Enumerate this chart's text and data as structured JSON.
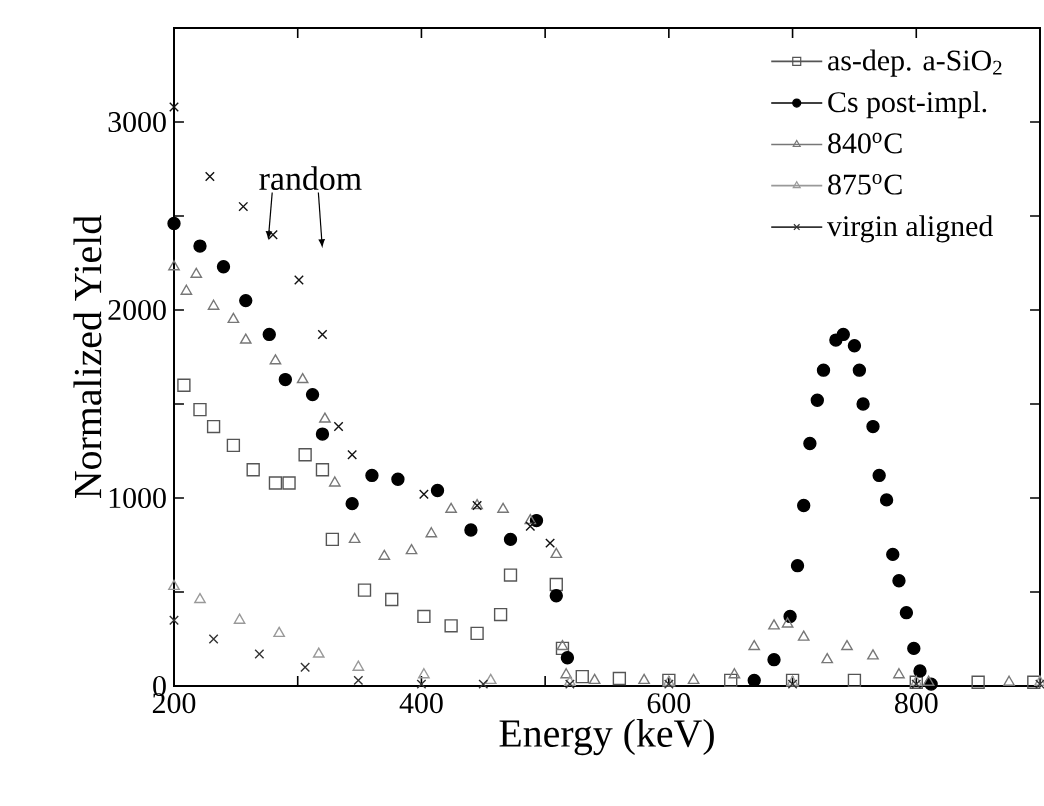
{
  "chart_data": {
    "type": "scatter",
    "xlabel": "Energy (keV)",
    "ylabel": "Normalized Yield",
    "xlim": [
      200,
      900
    ],
    "ylim": [
      0,
      3500
    ],
    "xticks": [
      200,
      {
        "value": 300,
        "label": null
      },
      400,
      {
        "value": 500,
        "label": null
      },
      600,
      {
        "value": 700,
        "label": null
      },
      800
    ],
    "yticks": [
      0,
      {
        "value": 500,
        "label": null
      },
      1000,
      {
        "value": 1500,
        "label": null
      },
      2000,
      {
        "value": 2500,
        "label": null
      },
      3000
    ],
    "legend": "top right",
    "grid": false,
    "annotations": [
      "random"
    ],
    "series": [
      {
        "name": "as-dep. a-SiO$_{2}$",
        "color": "#555555",
        "marker": "square",
        "x": [
          208,
          221,
          232,
          248,
          264,
          282,
          293,
          306,
          320,
          328,
          354,
          376,
          402,
          424,
          445,
          464,
          472,
          509,
          514,
          530,
          560,
          600,
          650,
          700,
          750,
          800,
          850,
          895
        ],
        "values": [
          1600,
          1470,
          1380,
          1280,
          1150,
          1080,
          1080,
          1230,
          1150,
          780,
          510,
          460,
          370,
          320,
          280,
          380,
          590,
          540,
          200,
          50,
          40,
          30,
          30,
          30,
          30,
          20,
          20,
          20
        ]
      },
      {
        "name": "Cs post-impl.",
        "color": "#000000",
        "marker": "circle",
        "x": [
          200,
          221,
          240,
          258,
          277,
          290,
          312,
          320,
          344,
          360,
          381,
          413,
          440,
          472,
          493,
          509,
          518,
          669,
          685,
          698,
          704,
          709,
          714,
          720,
          725,
          735,
          741,
          750,
          754,
          757,
          765,
          770,
          776,
          781,
          786,
          792,
          798,
          803,
          812
        ],
        "values": [
          2460,
          2340,
          2230,
          2050,
          1870,
          1630,
          1550,
          1340,
          970,
          1120,
          1100,
          1040,
          830,
          780,
          880,
          480,
          150,
          30,
          140,
          370,
          640,
          960,
          1290,
          1520,
          1680,
          1840,
          1870,
          1810,
          1680,
          1500,
          1380,
          1120,
          990,
          700,
          560,
          390,
          200,
          80,
          10
        ]
      },
      {
        "name": "840$^{o}$C",
        "color": "#777777",
        "marker": "triangle",
        "x": [
          200,
          210,
          218,
          232,
          248,
          258,
          282,
          304,
          322,
          330,
          346,
          370,
          392,
          408,
          424,
          445,
          466,
          488,
          509,
          514,
          517,
          540,
          580,
          620,
          653,
          669,
          685,
          696,
          709,
          728,
          744,
          765,
          786,
          810,
          875
        ],
        "values": [
          2230,
          2100,
          2190,
          2020,
          1950,
          1840,
          1730,
          1630,
          1420,
          1080,
          780,
          690,
          720,
          810,
          940,
          960,
          940,
          880,
          700,
          210,
          60,
          30,
          30,
          30,
          60,
          210,
          320,
          330,
          260,
          140,
          210,
          160,
          60,
          20,
          20
        ]
      },
      {
        "name": "875$^{o}$C",
        "color": "#999999",
        "marker": "triangle",
        "x": [
          200,
          221,
          253,
          285,
          317,
          349,
          402,
          456,
          520,
          600,
          700,
          800,
          900
        ],
        "values": [
          530,
          460,
          350,
          280,
          170,
          100,
          60,
          30,
          20,
          20,
          20,
          20,
          20
        ]
      },
      {
        "name": "virgin aligned",
        "color": "#333333",
        "marker": "cross",
        "x": [
          200,
          232,
          269,
          306,
          349,
          400,
          450,
          520,
          600,
          700,
          800,
          900
        ],
        "values": [
          350,
          250,
          170,
          100,
          30,
          10,
          10,
          10,
          10,
          10,
          10,
          10
        ]
      },
      {
        "color": "#111111",
        "marker": "cross",
        "x": [
          200,
          229,
          256,
          280,
          301,
          320,
          333,
          344,
          402,
          445,
          488,
          504
        ],
        "values": [
          3080,
          2710,
          2550,
          2400,
          2160,
          1870,
          1380,
          1230,
          1020,
          960,
          850,
          760
        ]
      }
    ]
  }
}
